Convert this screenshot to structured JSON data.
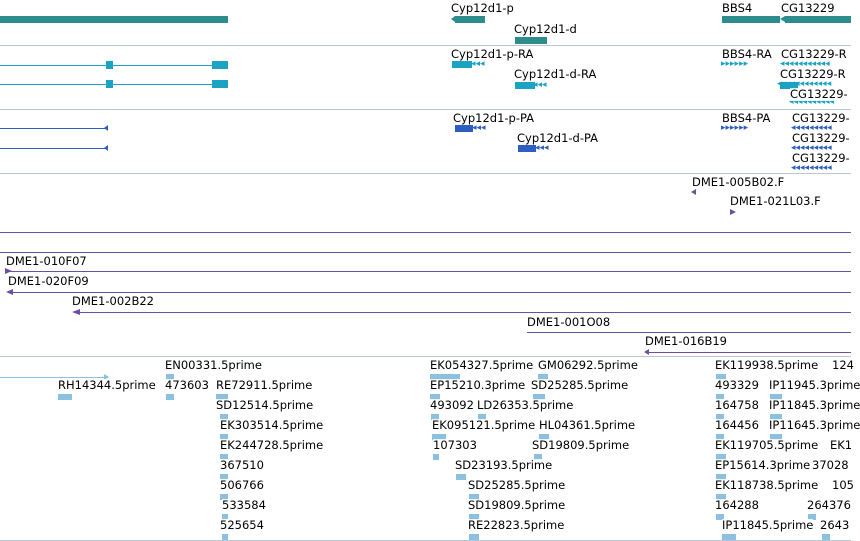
{
  "tracks": {
    "genes": {
      "labels": [
        "Cyp12d1-p",
        "Cyp12d1-d",
        "BBS4",
        "CG13229"
      ]
    },
    "transcripts": {
      "labels": [
        "Cyp12d1-p-RA",
        "Cyp12d1-d-RA",
        "BBS4-RA",
        "CG13229-R",
        "CG13229-R",
        "CG13229-"
      ]
    },
    "proteins": {
      "labels": [
        "Cyp12d1-p-PA",
        "Cyp12d1-d-PA",
        "BBS4-PA",
        "CG13229-",
        "CG13229-",
        "CG13229-"
      ]
    },
    "bac_ends": {
      "labels": [
        "DME1-005B02.F",
        "DME1-021L03.F"
      ]
    },
    "bacs": {
      "labels": [
        "DME1-010F07",
        "DME1-020F09",
        "DME1-002B22",
        "DME1-001O08",
        "DME1-016B19"
      ]
    },
    "ests": {
      "labels": [
        "EN00331.5prime",
        "RH14344.5prime",
        "473603",
        "RE72911.5prime",
        "SD12514.5prime",
        "EK303514.5prime",
        "EK244728.5prime",
        "367510",
        "506766",
        "533584",
        "525654",
        "EK054327.5prime",
        "GM06292.5prime",
        "EP15210.3prime",
        "SD25285.5prime",
        "493092",
        "LD26353.5prime",
        "EK095121.5prime",
        "HL04361.5prime",
        "107303",
        "SD19809.5prime",
        "SD23193.5prime",
        "SD25285.5prime",
        "SD19809.5prime",
        "RE22823.5prime",
        "EK119938.5prime",
        "124",
        "493329",
        "IP11945.3prime",
        "164758",
        "IP11845.3prime",
        "164456",
        "IP11645.3prime",
        "EK119705.5prime",
        "EK1",
        "EP15614.3prime",
        "37028",
        "EK118738.5prime",
        "105",
        "264376",
        "164288",
        "IP11845.5prime",
        "2643"
      ]
    }
  },
  "colors": {
    "gene": "#2f8c8c",
    "transcript": "#1aa3c3",
    "protein": "#2c5fc0",
    "bac": "#6b4fa3",
    "est": "#8cc0e0",
    "divider": "#b9c7d3"
  }
}
